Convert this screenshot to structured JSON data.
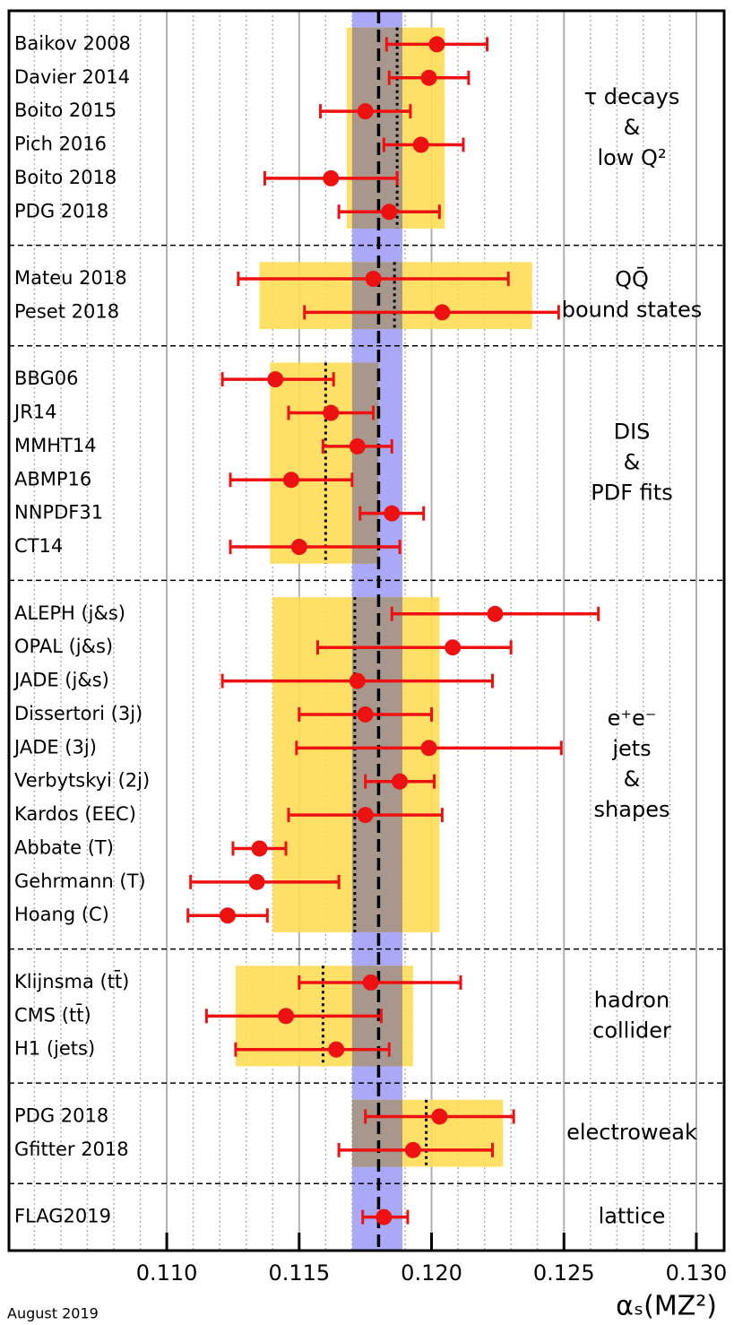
{
  "chart_data": {
    "type": "forest",
    "x_label": "αₛ(MZ²)",
    "footnote": "August 2019",
    "xlim": [
      0.10404,
      0.13105
    ],
    "xticks": [
      {
        "value": 0.11,
        "label": "0.110"
      },
      {
        "value": 0.115,
        "label": "0.115"
      },
      {
        "value": 0.12,
        "label": "0.120"
      },
      {
        "value": 0.125,
        "label": "0.125"
      },
      {
        "value": 0.13,
        "label": "0.130"
      }
    ],
    "minor_xticks": [
      0.105,
      0.106,
      0.107,
      0.108,
      0.109,
      0.111,
      0.112,
      0.113,
      0.114,
      0.116,
      0.117,
      0.118,
      0.119,
      0.121,
      0.122,
      0.123,
      0.124,
      0.126,
      0.127,
      0.128,
      0.129
    ],
    "average": {
      "value": 0.118,
      "band": [
        0.117,
        0.1189
      ]
    },
    "point_color": "#ee1111",
    "groups": [
      {
        "label": [
          "τ decays",
          "&",
          "low Q²"
        ],
        "band": [
          0.1168,
          0.1205
        ],
        "prefit": 0.1187,
        "names": [
          "Baikov 2008",
          "Davier 2014",
          "Boito 2015",
          "Pich 2016",
          "Boito 2018",
          "PDG 2018"
        ],
        "values": [
          0.1202,
          0.1199,
          0.1175,
          0.1196,
          0.1162,
          0.1184
        ],
        "lower": [
          0.1183,
          0.1184,
          0.1158,
          0.1182,
          0.1137,
          0.1165
        ],
        "upper": [
          0.1221,
          0.1214,
          0.1192,
          0.1212,
          0.1187,
          0.1203
        ]
      },
      {
        "label": [
          "QQ̄",
          "bound states"
        ],
        "band": [
          0.1135,
          0.1238
        ],
        "prefit": 0.1186,
        "names": [
          "Mateu 2018",
          "Peset 2018"
        ],
        "values": [
          0.1178,
          0.1204
        ],
        "lower": [
          0.1127,
          0.1152
        ],
        "upper": [
          0.1229,
          0.1248
        ]
      },
      {
        "label": [
          "DIS",
          "&",
          "PDF fits"
        ],
        "band": [
          0.1139,
          0.118
        ],
        "prefit": 0.116,
        "names": [
          "BBG06",
          "JR14",
          "MMHT14",
          "ABMP16",
          "NNPDF31",
          "CT14"
        ],
        "values": [
          0.1141,
          0.1162,
          0.1172,
          0.1147,
          0.1185,
          0.115
        ],
        "lower": [
          0.1121,
          0.1146,
          0.1159,
          0.1124,
          0.1173,
          0.1124
        ],
        "upper": [
          0.1163,
          0.1178,
          0.1185,
          0.117,
          0.1197,
          0.1188
        ]
      },
      {
        "label": [
          "e⁺e⁻",
          "jets",
          "&",
          "shapes"
        ],
        "band": [
          0.114,
          0.1203
        ],
        "prefit": 0.1171,
        "names": [
          "ALEPH (j&s)",
          "OPAL (j&s)",
          "JADE (j&s)",
          "Dissertori (3j)",
          "JADE (3j)",
          "Verbytskyi (2j)",
          "Kardos (EEC)",
          "Abbate (T)",
          "Gehrmann (T)",
          "Hoang (C)"
        ],
        "values": [
          0.1224,
          0.1208,
          0.1172,
          0.1175,
          0.1199,
          0.1188,
          0.1175,
          0.1135,
          0.1134,
          0.1123
        ],
        "lower": [
          0.1185,
          0.1157,
          0.1121,
          0.115,
          0.1149,
          0.1175,
          0.1146,
          0.1125,
          0.1109,
          0.1108
        ],
        "upper": [
          0.1263,
          0.123,
          0.1223,
          0.12,
          0.1249,
          0.1201,
          0.1204,
          0.1145,
          0.1165,
          0.1138
        ]
      },
      {
        "label": [
          "hadron",
          "collider"
        ],
        "band": [
          0.1126,
          0.1193
        ],
        "prefit": 0.1159,
        "names": [
          "Klijnsma (tt̄)",
          "CMS (tt̄)",
          "H1 (jets)"
        ],
        "values": [
          0.1177,
          0.1145,
          0.1164
        ],
        "lower": [
          0.115,
          0.1115,
          0.1126
        ],
        "upper": [
          0.1211,
          0.1181,
          0.1184
        ]
      },
      {
        "label": [
          "electroweak"
        ],
        "band": [
          0.117,
          0.1227
        ],
        "prefit": 0.1198,
        "names": [
          "PDG 2018",
          "Gfitter 2018"
        ],
        "values": [
          0.1203,
          0.1193
        ],
        "lower": [
          0.1175,
          0.1165
        ],
        "upper": [
          0.1231,
          0.1223
        ]
      },
      {
        "label": [
          "lattice"
        ],
        "names": [
          "FLAG2019"
        ],
        "values": [
          0.1182
        ],
        "lower": [
          0.1174
        ],
        "upper": [
          0.1191
        ]
      }
    ]
  }
}
